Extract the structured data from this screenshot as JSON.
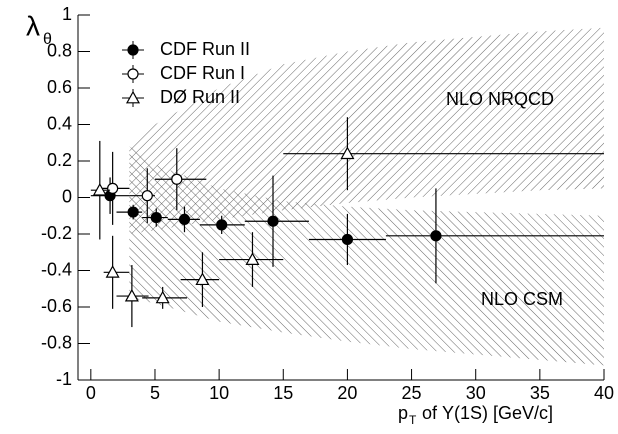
{
  "chart_data": {
    "type": "errorbar",
    "y_label": "λ",
    "y_label_sub": "θ",
    "x_label_base": "p",
    "x_label_sub": "T",
    "x_label_rest": "of Υ(1S) [GeV/c]",
    "xlim": [
      -1,
      40
    ],
    "ylim": [
      -1,
      1
    ],
    "xticks": [
      0,
      5,
      10,
      15,
      20,
      25,
      30,
      35,
      40
    ],
    "yticks": [
      -1,
      -0.8,
      -0.6,
      -0.4,
      -0.2,
      0,
      0.2,
      0.4,
      0.6,
      0.8,
      1
    ],
    "bands": [
      {
        "name": "NLO NRQCD",
        "x": [
          3,
          5,
          10,
          15,
          20,
          25,
          30,
          35,
          40
        ],
        "upper": [
          0.27,
          0.4,
          0.6,
          0.73,
          0.8,
          0.85,
          0.88,
          0.91,
          0.93
        ],
        "lower": [
          -0.2,
          -0.18,
          -0.12,
          -0.07,
          -0.03,
          0,
          0.02,
          0.04,
          0.05
        ]
      },
      {
        "name": "NLO CSM",
        "x": [
          3,
          5,
          10,
          15,
          20,
          25,
          30,
          35,
          40
        ],
        "upper": [
          0.28,
          0.18,
          0.05,
          -0.02,
          -0.05,
          -0.07,
          -0.08,
          -0.09,
          -0.1
        ],
        "lower": [
          -0.55,
          -0.58,
          -0.68,
          -0.74,
          -0.79,
          -0.83,
          -0.86,
          -0.89,
          -0.92
        ]
      }
    ],
    "series": [
      {
        "name": "CDF Run II",
        "marker": "filled-circle",
        "color": "#000000",
        "x": [
          1.5,
          3.3,
          5.1,
          7.3,
          10.2,
          14.2,
          20,
          26.9
        ],
        "values": [
          0.01,
          -0.08,
          -0.11,
          -0.12,
          -0.15,
          -0.13,
          -0.23,
          -0.21
        ],
        "errors": [
          0.1,
          0.04,
          0.05,
          0.07,
          0.05,
          0.25,
          0.14,
          0.26
        ],
        "x_low": [
          0,
          2,
          4,
          6,
          8.5,
          12,
          17,
          23
        ],
        "x_high": [
          3,
          4,
          6,
          8.5,
          12,
          17,
          23,
          40
        ]
      },
      {
        "name": "CDF Run I",
        "marker": "open-circle",
        "color": "#000000",
        "x": [
          1.7,
          4.4,
          6.7
        ],
        "values": [
          0.05,
          0.01,
          0.1
        ],
        "errors": [
          0.2,
          0.15,
          0.17
        ],
        "x_low": [
          0.5,
          3,
          5
        ],
        "x_high": [
          3,
          5,
          9
        ]
      },
      {
        "name": "DØ Run II",
        "marker": "open-triangle",
        "color": "#000000",
        "x": [
          0.7,
          1.7,
          3.2,
          5.6,
          8.7,
          12.6,
          20
        ],
        "values": [
          0.04,
          -0.41,
          -0.54,
          -0.55,
          -0.45,
          -0.34,
          0.24
        ],
        "errors": [
          0.27,
          0.2,
          0.17,
          0.06,
          0.15,
          0.15,
          0.2
        ],
        "x_low": [
          0,
          1,
          2,
          4,
          7,
          10,
          15
        ],
        "x_high": [
          1.5,
          3,
          4.5,
          7.5,
          10,
          15,
          40
        ]
      }
    ]
  }
}
